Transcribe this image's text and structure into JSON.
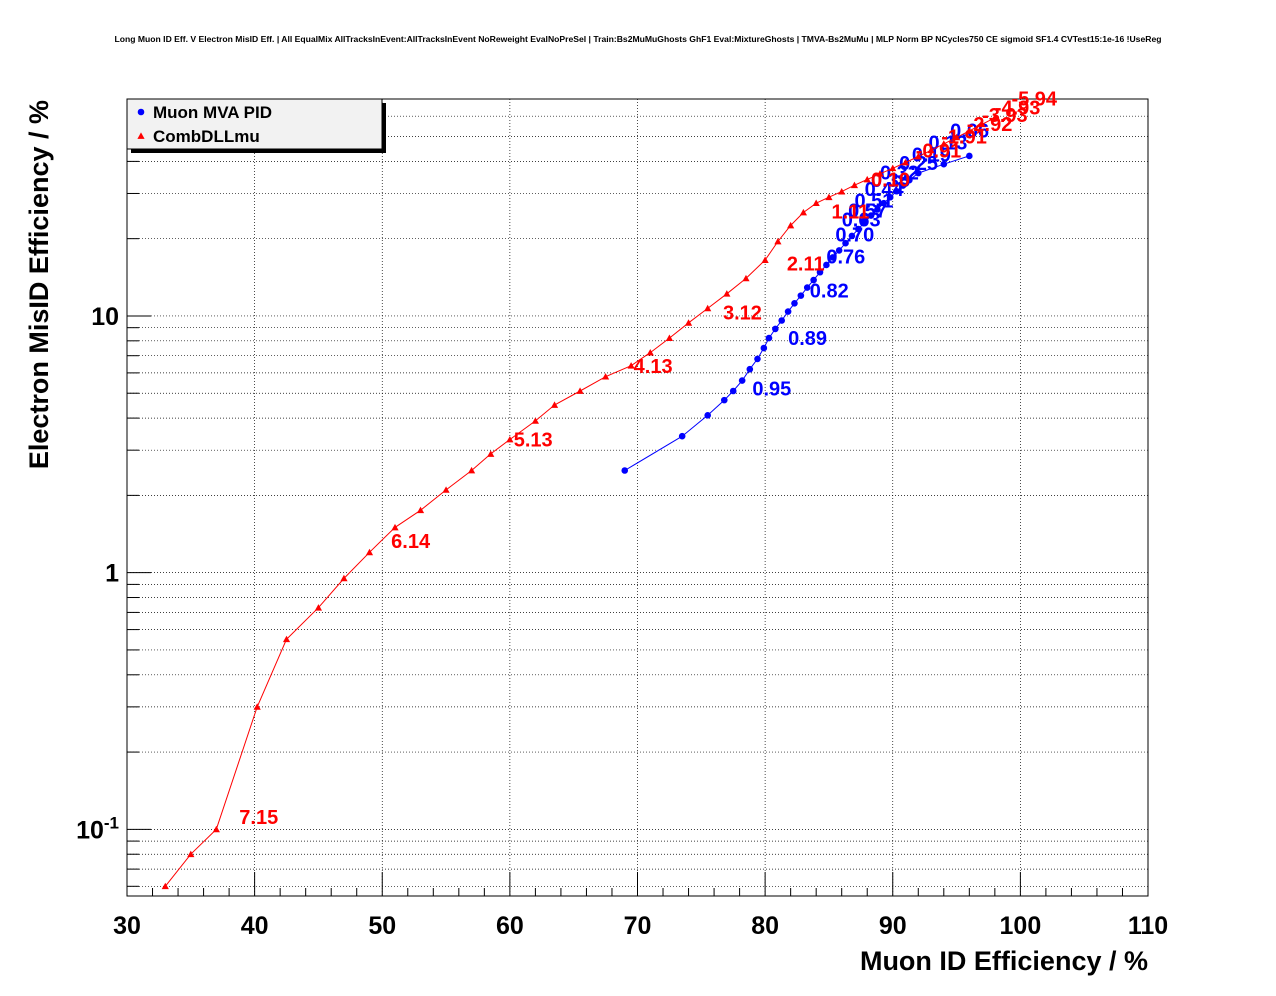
{
  "chart_data": {
    "type": "scatter",
    "title": "Long Muon ID Eff. V Electron MisID Eff. | All EqualMix AllTracksInEvent:AllTracksInEvent NoReweight EvalNoPreSel | Train:Bs2MuMuGhosts GhF1 Eval:MixtureGhosts | TMVA-Bs2MuMu | MLP Norm BP NCycles750 CE sigmoid SF1.4 CVTest15:1e-16 !UseReg",
    "xlabel": "Muon ID Efficiency / %",
    "ylabel": "Electron MisID Efficiency / %",
    "xlim": [
      30,
      110
    ],
    "ylim": [
      0.055,
      70
    ],
    "yscale": "log",
    "grid": true,
    "legend_position": "top-left",
    "x_ticks": [
      30,
      40,
      50,
      60,
      70,
      80,
      90,
      100,
      110
    ],
    "y_ticks": [
      {
        "value": 0.1,
        "base": "10",
        "exp": "-1"
      },
      {
        "value": 1,
        "label": "1"
      },
      {
        "value": 10,
        "label": "10"
      }
    ],
    "series": [
      {
        "name": "Muon MVA PID",
        "color": "#0000ff",
        "marker": "circle",
        "points": [
          [
            69.0,
            2.5
          ],
          [
            73.5,
            3.4
          ],
          [
            75.5,
            4.1
          ],
          [
            76.8,
            4.7
          ],
          [
            77.5,
            5.1
          ],
          [
            78.2,
            5.6
          ],
          [
            78.8,
            6.2
          ],
          [
            79.4,
            6.8
          ],
          [
            79.9,
            7.5
          ],
          [
            80.3,
            8.2
          ],
          [
            80.8,
            8.9
          ],
          [
            81.3,
            9.6
          ],
          [
            81.8,
            10.4
          ],
          [
            82.3,
            11.2
          ],
          [
            82.8,
            12.0
          ],
          [
            83.3,
            12.9
          ],
          [
            83.8,
            13.8
          ],
          [
            84.3,
            14.8
          ],
          [
            84.8,
            15.8
          ],
          [
            85.3,
            16.9
          ],
          [
            85.8,
            18.0
          ],
          [
            86.3,
            19.2
          ],
          [
            86.8,
            20.5
          ],
          [
            87.3,
            21.8
          ],
          [
            87.8,
            23.2
          ],
          [
            88.3,
            24.6
          ],
          [
            88.8,
            26.0
          ],
          [
            89.3,
            27.5
          ],
          [
            89.8,
            29.0
          ],
          [
            90.3,
            30.6
          ],
          [
            90.8,
            32.2
          ],
          [
            91.3,
            33.8
          ],
          [
            92.0,
            36.0
          ],
          [
            94.0,
            39.0
          ],
          [
            96.0,
            42.0
          ]
        ],
        "labels": [
          {
            "text": "0.95",
            "x": 79.0,
            "y": 4.9
          },
          {
            "text": "0.89",
            "x": 81.8,
            "y": 7.7
          },
          {
            "text": "0.82",
            "x": 83.5,
            "y": 11.8
          },
          {
            "text": "0.76",
            "x": 84.8,
            "y": 16.0
          },
          {
            "text": "0.70",
            "x": 85.5,
            "y": 19.5
          },
          {
            "text": "0.63",
            "x": 86.0,
            "y": 22.3
          },
          {
            "text": "0.57",
            "x": 86.5,
            "y": 24.2
          },
          {
            "text": "0.51",
            "x": 87.0,
            "y": 26.5
          },
          {
            "text": "0.44",
            "x": 87.8,
            "y": 29.3
          },
          {
            "text": "0.38",
            "x": 88.3,
            "y": 31.8
          },
          {
            "text": "0.32",
            "x": 89.0,
            "y": 34.0
          },
          {
            "text": "0.25",
            "x": 90.5,
            "y": 37.0
          },
          {
            "text": "0.19",
            "x": 91.5,
            "y": 40.0
          },
          {
            "text": "0.13",
            "x": 92.8,
            "y": 44.5
          },
          {
            "text": "0.06",
            "x": 94.5,
            "y": 49.5
          }
        ]
      },
      {
        "name": "CombDLLmu",
        "color": "#ff0000",
        "marker": "triangle",
        "points": [
          [
            33.0,
            0.06
          ],
          [
            35.0,
            0.08
          ],
          [
            37.0,
            0.1
          ],
          [
            40.2,
            0.3
          ],
          [
            42.5,
            0.55
          ],
          [
            45.0,
            0.73
          ],
          [
            47.0,
            0.95
          ],
          [
            49.0,
            1.2
          ],
          [
            51.0,
            1.5
          ],
          [
            53.0,
            1.75
          ],
          [
            55.0,
            2.1
          ],
          [
            57.0,
            2.5
          ],
          [
            58.5,
            2.9
          ],
          [
            60.0,
            3.3
          ],
          [
            62.0,
            3.9
          ],
          [
            63.5,
            4.5
          ],
          [
            65.5,
            5.1
          ],
          [
            67.5,
            5.8
          ],
          [
            69.5,
            6.4
          ],
          [
            71.0,
            7.2
          ],
          [
            72.5,
            8.2
          ],
          [
            74.0,
            9.4
          ],
          [
            75.5,
            10.7
          ],
          [
            77.0,
            12.2
          ],
          [
            78.5,
            14.0
          ],
          [
            80.0,
            16.5
          ],
          [
            81.0,
            19.5
          ],
          [
            82.0,
            22.5
          ],
          [
            83.0,
            25.3
          ],
          [
            84.0,
            27.5
          ],
          [
            85.0,
            29.0
          ],
          [
            86.0,
            30.5
          ],
          [
            87.0,
            32.3
          ],
          [
            88.0,
            34.0
          ],
          [
            89.0,
            35.8
          ],
          [
            90.0,
            37.6
          ],
          [
            91.0,
            39.6
          ],
          [
            92.0,
            41.8
          ],
          [
            93.0,
            44.2
          ],
          [
            94.0,
            46.8
          ],
          [
            95.0,
            49.6
          ],
          [
            96.0,
            52.6
          ],
          [
            97.0,
            55.8
          ],
          [
            98.0,
            59.2
          ]
        ],
        "labels": [
          {
            "text": "7.15",
            "x": 38.8,
            "y": 0.105
          },
          {
            "text": "6.14",
            "x": 50.7,
            "y": 1.25
          },
          {
            "text": "5.13",
            "x": 60.3,
            "y": 3.1
          },
          {
            "text": "4.13",
            "x": 69.7,
            "y": 6.0
          },
          {
            "text": "3.12",
            "x": 76.7,
            "y": 9.7
          },
          {
            "text": "2.11",
            "x": 81.7,
            "y": 15.0
          },
          {
            "text": "1.11",
            "x": 85.2,
            "y": 24.0
          },
          {
            "text": "0.10",
            "x": 88.3,
            "y": 32.0
          },
          {
            "text": "-0.91",
            "x": 91.8,
            "y": 41.5
          },
          {
            "text": "-1.91",
            "x": 93.8,
            "y": 47.0
          },
          {
            "text": "-2.92",
            "x": 95.8,
            "y": 52.5
          },
          {
            "text": "-3.93",
            "x": 97.0,
            "y": 57.0
          },
          {
            "text": "-4.93",
            "x": 98.0,
            "y": 61.0
          },
          {
            "text": "-5.94",
            "x": 99.3,
            "y": 66.0
          }
        ]
      }
    ]
  }
}
